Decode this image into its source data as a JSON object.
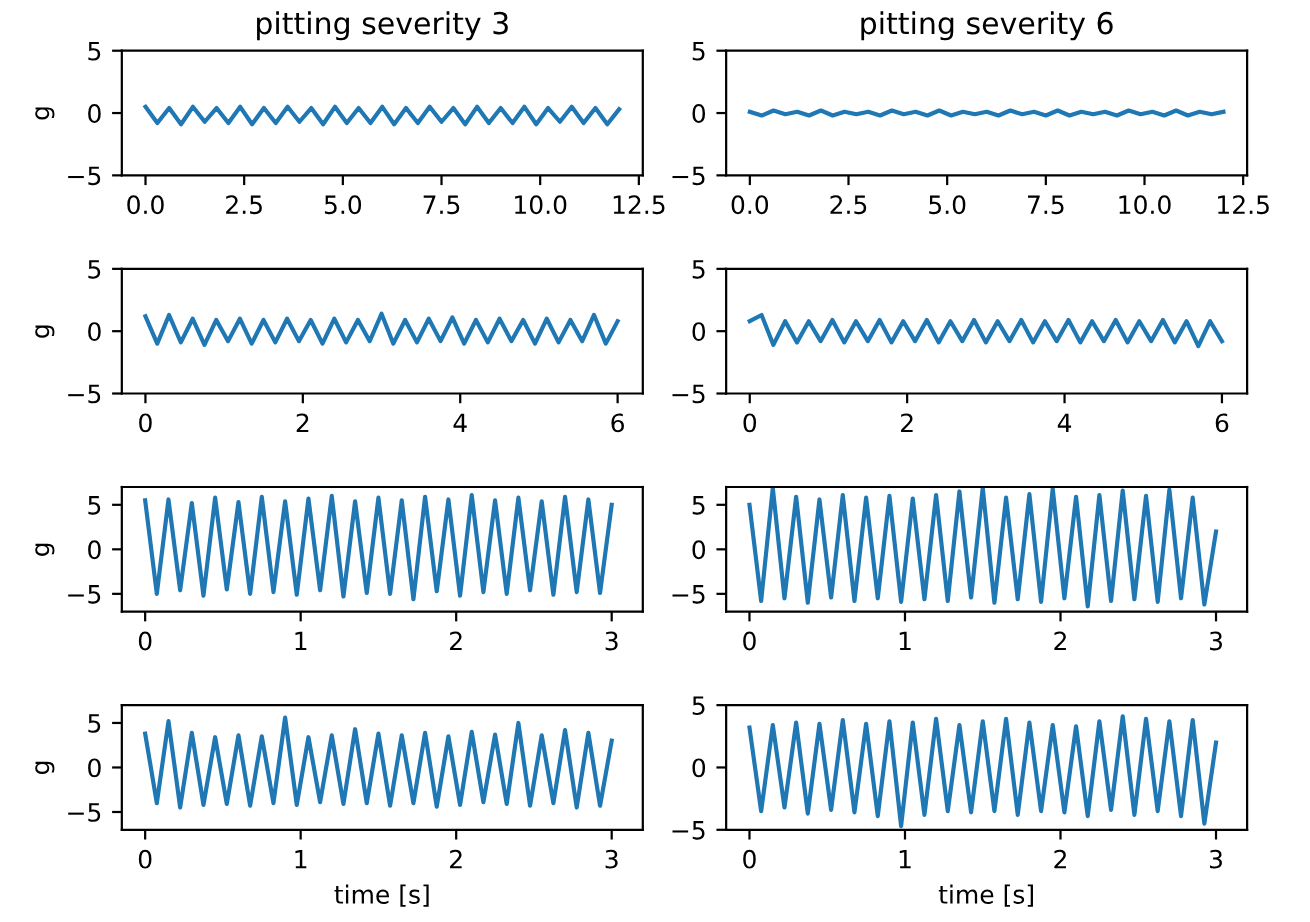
{
  "chart_data": [
    {
      "type": "line",
      "title": "pitting severity 3",
      "ylabel": "g",
      "xlim": [
        -0.6,
        12.6
      ],
      "ylim": [
        -5,
        5
      ],
      "xticks": [
        {
          "value": 0,
          "label": "0.0"
        },
        {
          "value": 2.5,
          "label": "2.5"
        },
        {
          "value": 5,
          "label": "5.0"
        },
        {
          "value": 7.5,
          "label": "7.5"
        },
        {
          "value": 10,
          "label": "10.0"
        },
        {
          "value": 12.5,
          "label": "12.5"
        }
      ],
      "yticks": [
        -5,
        0,
        5
      ],
      "series": [
        {
          "color": "#1f77b4",
          "x": [
            0,
            0.3,
            0.6,
            0.9,
            1.2,
            1.5,
            1.8,
            2.1,
            2.4,
            2.7,
            3,
            3.3,
            3.6,
            3.9,
            4.2,
            4.5,
            4.8,
            5.1,
            5.4,
            5.7,
            6,
            6.3,
            6.6,
            6.9,
            7.2,
            7.5,
            7.8,
            8.1,
            8.4,
            8.7,
            9,
            9.3,
            9.6,
            9.9,
            10.2,
            10.5,
            10.8,
            11.1,
            11.4,
            11.7,
            12
          ],
          "values": [
            0.5,
            -0.8,
            0.4,
            -0.9,
            0.5,
            -0.7,
            0.4,
            -0.8,
            0.5,
            -0.9,
            0.4,
            -0.8,
            0.5,
            -0.7,
            0.4,
            -0.9,
            0.5,
            -0.8,
            0.4,
            -0.8,
            0.5,
            -0.9,
            0.4,
            -0.8,
            0.5,
            -0.7,
            0.4,
            -0.9,
            0.5,
            -0.8,
            0.4,
            -0.8,
            0.5,
            -0.9,
            0.4,
            -0.7,
            0.5,
            -0.8,
            0.4,
            -0.9,
            0.3
          ]
        }
      ]
    },
    {
      "type": "line",
      "title": "pitting severity 6",
      "xlim": [
        -0.6,
        12.6
      ],
      "ylim": [
        -5,
        5
      ],
      "xticks": [
        {
          "value": 0,
          "label": "0.0"
        },
        {
          "value": 2.5,
          "label": "2.5"
        },
        {
          "value": 5,
          "label": "5.0"
        },
        {
          "value": 7.5,
          "label": "7.5"
        },
        {
          "value": 10,
          "label": "10.0"
        },
        {
          "value": 12.5,
          "label": "12.5"
        }
      ],
      "yticks": [
        -5,
        0,
        5
      ],
      "series": [
        {
          "color": "#1f77b4",
          "x": [
            0,
            0.3,
            0.6,
            0.9,
            1.2,
            1.5,
            1.8,
            2.1,
            2.4,
            2.7,
            3,
            3.3,
            3.6,
            3.9,
            4.2,
            4.5,
            4.8,
            5.1,
            5.4,
            5.7,
            6,
            6.3,
            6.6,
            6.9,
            7.2,
            7.5,
            7.8,
            8.1,
            8.4,
            8.7,
            9,
            9.3,
            9.6,
            9.9,
            10.2,
            10.5,
            10.8,
            11.1,
            11.4,
            11.7,
            12
          ],
          "values": [
            0.1,
            -0.2,
            0.2,
            -0.1,
            0.1,
            -0.2,
            0.2,
            -0.2,
            0.1,
            -0.1,
            0.1,
            -0.2,
            0.2,
            -0.1,
            0.1,
            -0.2,
            0.2,
            -0.2,
            0.1,
            -0.1,
            0.1,
            -0.2,
            0.2,
            -0.1,
            0.1,
            -0.2,
            0.2,
            -0.2,
            0.1,
            -0.1,
            0.1,
            -0.2,
            0.2,
            -0.1,
            0.1,
            -0.2,
            0.2,
            -0.2,
            0.1,
            -0.1,
            0.1
          ]
        }
      ]
    },
    {
      "type": "line",
      "ylabel": "g",
      "xlim": [
        -0.3,
        6.32
      ],
      "ylim": [
        -5,
        5
      ],
      "xticks": [
        0,
        2,
        4,
        6
      ],
      "yticks": [
        -5,
        0,
        5
      ],
      "series": [
        {
          "color": "#1f77b4",
          "x": [
            0,
            0.15,
            0.3,
            0.45,
            0.6,
            0.75,
            0.9,
            1.05,
            1.2,
            1.35,
            1.5,
            1.65,
            1.8,
            1.95,
            2.1,
            2.25,
            2.4,
            2.55,
            2.7,
            2.85,
            3,
            3.15,
            3.3,
            3.45,
            3.6,
            3.75,
            3.9,
            4.05,
            4.2,
            4.35,
            4.5,
            4.65,
            4.8,
            4.95,
            5.1,
            5.25,
            5.4,
            5.55,
            5.7,
            5.85,
            6
          ],
          "values": [
            1.2,
            -1.0,
            1.3,
            -0.9,
            1.0,
            -1.1,
            0.9,
            -0.8,
            1.0,
            -1.0,
            0.9,
            -0.9,
            1.0,
            -0.8,
            0.9,
            -1.0,
            1.0,
            -0.9,
            0.9,
            -0.8,
            1.4,
            -1.0,
            0.9,
            -0.9,
            1.0,
            -0.8,
            1.1,
            -1.0,
            0.9,
            -0.9,
            1.0,
            -0.8,
            0.9,
            -1.0,
            1.0,
            -0.9,
            0.9,
            -0.8,
            1.3,
            -1.0,
            0.8
          ]
        }
      ]
    },
    {
      "type": "line",
      "xlim": [
        -0.3,
        6.32
      ],
      "ylim": [
        -5,
        5
      ],
      "xticks": [
        0,
        2,
        4,
        6
      ],
      "yticks": [
        -5,
        0,
        5
      ],
      "series": [
        {
          "color": "#1f77b4",
          "x": [
            0,
            0.15,
            0.3,
            0.45,
            0.6,
            0.75,
            0.9,
            1.05,
            1.2,
            1.35,
            1.5,
            1.65,
            1.8,
            1.95,
            2.1,
            2.25,
            2.4,
            2.55,
            2.7,
            2.85,
            3,
            3.15,
            3.3,
            3.45,
            3.6,
            3.75,
            3.9,
            4.05,
            4.2,
            4.35,
            4.5,
            4.65,
            4.8,
            4.95,
            5.1,
            5.25,
            5.4,
            5.55,
            5.7,
            5.85,
            6
          ],
          "values": [
            0.8,
            1.3,
            -1.1,
            0.8,
            -0.9,
            0.8,
            -0.8,
            0.9,
            -0.9,
            0.8,
            -0.8,
            0.9,
            -0.9,
            0.8,
            -0.8,
            0.9,
            -0.9,
            0.8,
            -0.8,
            0.9,
            -0.9,
            0.8,
            -0.8,
            0.9,
            -0.9,
            0.8,
            -0.8,
            0.9,
            -0.9,
            0.8,
            -0.8,
            0.9,
            -0.9,
            0.8,
            -0.8,
            0.9,
            -0.9,
            0.8,
            -1.2,
            0.8,
            -0.8
          ]
        }
      ]
    },
    {
      "type": "line",
      "ylabel": "g",
      "xlim": [
        -0.15,
        3.2
      ],
      "ylim": [
        -7,
        7
      ],
      "xticks": [
        0,
        1,
        2,
        3
      ],
      "yticks": [
        -5,
        0,
        5
      ],
      "series": [
        {
          "color": "#1f77b4",
          "x": [
            0,
            0.075,
            0.15,
            0.225,
            0.3,
            0.375,
            0.45,
            0.525,
            0.6,
            0.675,
            0.75,
            0.825,
            0.9,
            0.975,
            1.05,
            1.125,
            1.2,
            1.275,
            1.35,
            1.425,
            1.5,
            1.575,
            1.65,
            1.725,
            1.8,
            1.875,
            1.95,
            2.025,
            2.1,
            2.175,
            2.25,
            2.325,
            2.4,
            2.475,
            2.55,
            2.625,
            2.7,
            2.775,
            2.85,
            2.925,
            3
          ],
          "values": [
            5.5,
            -5.0,
            5.6,
            -4.6,
            5.2,
            -5.2,
            5.8,
            -4.5,
            5.3,
            -5.0,
            5.9,
            -4.8,
            5.4,
            -5.1,
            5.7,
            -4.6,
            6.0,
            -5.3,
            5.4,
            -4.9,
            5.8,
            -5.0,
            5.5,
            -5.6,
            5.9,
            -4.7,
            5.6,
            -5.2,
            6.1,
            -4.8,
            5.5,
            -5.0,
            5.8,
            -4.6,
            5.4,
            -5.1,
            5.9,
            -4.8,
            5.6,
            -4.9,
            5.0
          ]
        }
      ]
    },
    {
      "type": "line",
      "xlim": [
        -0.15,
        3.2
      ],
      "ylim": [
        -7,
        7
      ],
      "xticks": [
        0,
        1,
        2,
        3
      ],
      "yticks": [
        -5,
        0,
        5
      ],
      "series": [
        {
          "color": "#1f77b4",
          "x": [
            0,
            0.075,
            0.15,
            0.225,
            0.3,
            0.375,
            0.45,
            0.525,
            0.6,
            0.675,
            0.75,
            0.825,
            0.9,
            0.975,
            1.05,
            1.125,
            1.2,
            1.275,
            1.35,
            1.425,
            1.5,
            1.575,
            1.65,
            1.725,
            1.8,
            1.875,
            1.95,
            2.025,
            2.1,
            2.175,
            2.25,
            2.325,
            2.4,
            2.475,
            2.55,
            2.625,
            2.7,
            2.775,
            2.85,
            2.925,
            3
          ],
          "values": [
            5.0,
            -5.8,
            6.9,
            -5.5,
            5.9,
            -6.0,
            5.6,
            -5.4,
            6.1,
            -5.8,
            5.8,
            -5.5,
            6.0,
            -5.9,
            5.7,
            -5.6,
            6.1,
            -5.8,
            6.5,
            -5.4,
            6.9,
            -6.0,
            5.8,
            -5.6,
            6.2,
            -5.9,
            6.8,
            -5.5,
            5.9,
            -6.4,
            6.1,
            -5.8,
            6.6,
            -5.6,
            6.0,
            -5.9,
            6.7,
            -5.5,
            5.8,
            -6.2,
            2.0
          ]
        }
      ]
    },
    {
      "type": "line",
      "ylabel": "g",
      "xlabel": "time [s]",
      "xlim": [
        -0.15,
        3.2
      ],
      "ylim": [
        -7,
        7
      ],
      "xticks": [
        0,
        1,
        2,
        3
      ],
      "yticks": [
        -5,
        0,
        5
      ],
      "series": [
        {
          "color": "#1f77b4",
          "x": [
            0,
            0.075,
            0.15,
            0.225,
            0.3,
            0.375,
            0.45,
            0.525,
            0.6,
            0.675,
            0.75,
            0.825,
            0.9,
            0.975,
            1.05,
            1.125,
            1.2,
            1.275,
            1.35,
            1.425,
            1.5,
            1.575,
            1.65,
            1.725,
            1.8,
            1.875,
            1.95,
            2.025,
            2.1,
            2.175,
            2.25,
            2.325,
            2.4,
            2.475,
            2.55,
            2.625,
            2.7,
            2.775,
            2.85,
            2.925,
            3
          ],
          "values": [
            3.8,
            -4.0,
            5.2,
            -4.5,
            3.9,
            -4.2,
            3.4,
            -4.1,
            3.6,
            -4.3,
            3.5,
            -4.0,
            5.6,
            -4.2,
            3.4,
            -3.9,
            3.6,
            -4.1,
            4.3,
            -4.0,
            3.8,
            -4.3,
            3.6,
            -4.0,
            3.9,
            -4.4,
            3.5,
            -4.2,
            4.0,
            -3.9,
            3.7,
            -4.1,
            5.0,
            -4.3,
            3.6,
            -4.0,
            4.2,
            -4.5,
            3.9,
            -4.3,
            3.0
          ]
        }
      ]
    },
    {
      "type": "line",
      "xlabel": "time [s]",
      "xlim": [
        -0.15,
        3.2
      ],
      "ylim": [
        -5,
        5
      ],
      "xticks": [
        0,
        1,
        2,
        3
      ],
      "yticks": [
        -5,
        0,
        5
      ],
      "series": [
        {
          "color": "#1f77b4",
          "x": [
            0,
            0.075,
            0.15,
            0.225,
            0.3,
            0.375,
            0.45,
            0.525,
            0.6,
            0.675,
            0.75,
            0.825,
            0.9,
            0.975,
            1.05,
            1.125,
            1.2,
            1.275,
            1.35,
            1.425,
            1.5,
            1.575,
            1.65,
            1.725,
            1.8,
            1.875,
            1.95,
            2.025,
            2.1,
            2.175,
            2.25,
            2.325,
            2.4,
            2.475,
            2.55,
            2.625,
            2.7,
            2.775,
            2.85,
            2.925,
            3
          ],
          "values": [
            3.2,
            -3.5,
            3.4,
            -3.2,
            3.6,
            -3.7,
            3.5,
            -3.4,
            3.8,
            -3.6,
            3.5,
            -3.9,
            3.7,
            -4.7,
            3.6,
            -3.8,
            3.9,
            -3.5,
            3.4,
            -3.6,
            3.7,
            -3.5,
            3.9,
            -3.8,
            3.6,
            -3.5,
            3.4,
            -3.6,
            3.3,
            -3.9,
            3.7,
            -3.4,
            4.1,
            -3.8,
            3.9,
            -3.5,
            3.7,
            -3.9,
            3.8,
            -4.5,
            2.0
          ]
        }
      ]
    }
  ]
}
